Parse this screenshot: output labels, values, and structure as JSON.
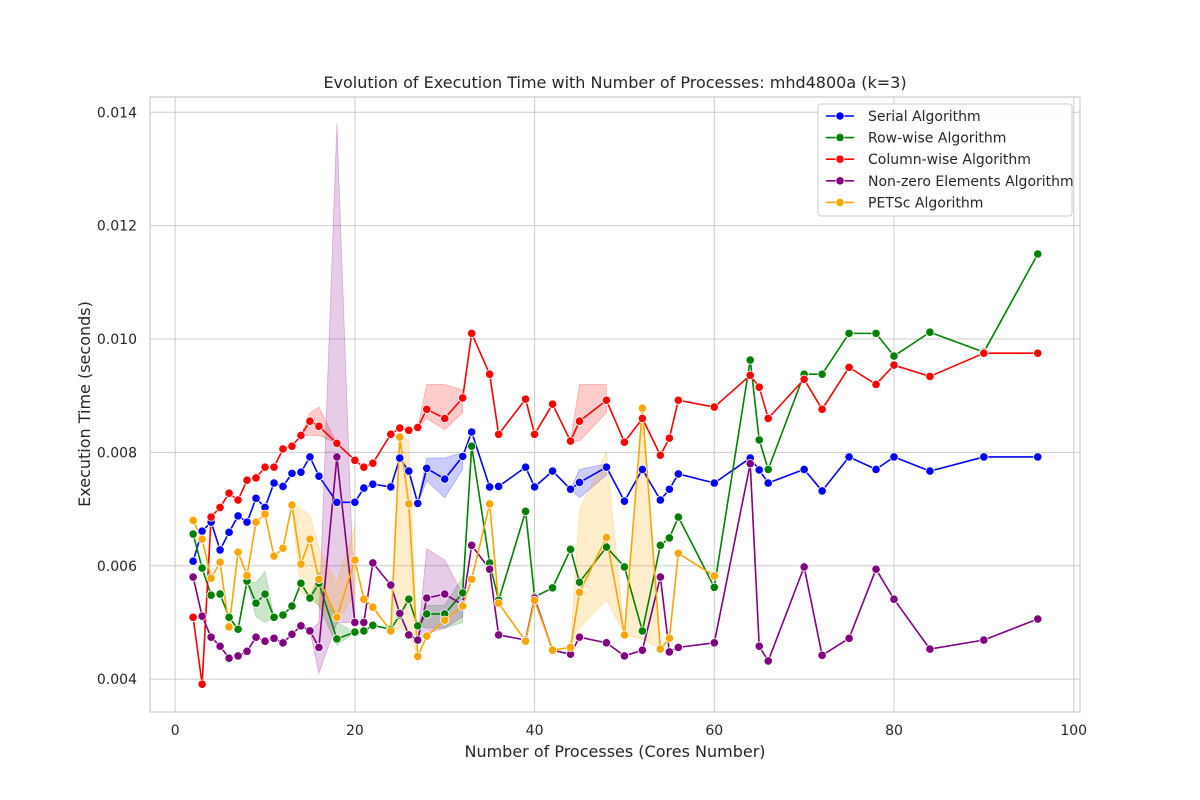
{
  "chart_data": {
    "type": "line",
    "title": "Evolution of Execution Time with Number of Processes: mhd4800a (k=3)",
    "xlabel": "Number of Processes (Cores Number)",
    "ylabel": "Execution Time (seconds)",
    "xlim": [
      -2.8,
      100.7
    ],
    "ylim": [
      0.00342,
      0.01427
    ],
    "xticks": [
      0,
      20,
      40,
      60,
      80,
      100
    ],
    "xtick_labels": [
      "0",
      "20",
      "40",
      "60",
      "80",
      "100"
    ],
    "yticks": [
      0.004,
      0.006,
      0.008,
      0.01,
      0.012,
      0.014
    ],
    "ytick_labels": [
      "0.004",
      "0.006",
      "0.008",
      "0.010",
      "0.012",
      "0.014"
    ],
    "grid": true,
    "legend": "top-right",
    "series": [
      {
        "name": "Serial Algorithm",
        "color": "#0000ff",
        "x": [
          2,
          3,
          4,
          5,
          6,
          7,
          8,
          9,
          10,
          11,
          12,
          13,
          14,
          15,
          16,
          18,
          20,
          21,
          22,
          24,
          25,
          26,
          27,
          28,
          30,
          32,
          33,
          35,
          36,
          39,
          40,
          42,
          44,
          45,
          48,
          50,
          52,
          54,
          55,
          56,
          60,
          64,
          65,
          66,
          70,
          72,
          75,
          78,
          80,
          84,
          90,
          96
        ],
        "y": [
          0.00608,
          0.00661,
          0.00677,
          0.00628,
          0.00659,
          0.00688,
          0.00677,
          0.00719,
          0.00703,
          0.00746,
          0.0074,
          0.00763,
          0.00765,
          0.00792,
          0.00758,
          0.00712,
          0.00712,
          0.00737,
          0.00744,
          0.00739,
          0.0079,
          0.00767,
          0.0071,
          0.00772,
          0.00753,
          0.00793,
          0.00836,
          0.00739,
          0.0074,
          0.00774,
          0.00739,
          0.00767,
          0.00735,
          0.00747,
          0.00774,
          0.00714,
          0.0077,
          0.00716,
          0.00735,
          0.00762,
          0.00746,
          0.0079,
          0.00769,
          0.00746,
          0.0077,
          0.00732,
          0.00792,
          0.0077,
          0.00792,
          0.00767,
          0.00792,
          0.00792
        ],
        "bands": [
          {
            "x": [
              27,
              28,
              30,
              32
            ],
            "lower": [
              0.0071,
              0.0075,
              0.0072,
              0.0077
            ],
            "upper": [
              0.0071,
              0.0079,
              0.0079,
              0.008
            ]
          },
          {
            "x": [
              44,
              45,
              48
            ],
            "lower": [
              0.00735,
              0.0072,
              0.0076
            ],
            "upper": [
              0.00735,
              0.0077,
              0.0078
            ]
          }
        ]
      },
      {
        "name": "Row-wise Algorithm",
        "color": "#008000",
        "x": [
          2,
          3,
          4,
          5,
          6,
          7,
          8,
          9,
          10,
          11,
          12,
          13,
          14,
          15,
          16,
          18,
          20,
          21,
          22,
          24,
          25,
          26,
          27,
          28,
          30,
          32,
          33,
          35,
          36,
          39,
          40,
          42,
          44,
          45,
          48,
          50,
          52,
          54,
          55,
          56,
          60,
          64,
          65,
          66,
          70,
          72,
          75,
          78,
          80,
          84,
          90,
          96
        ],
        "y": [
          0.00656,
          0.00596,
          0.00548,
          0.0055,
          0.00509,
          0.00488,
          0.00573,
          0.00534,
          0.0055,
          0.00509,
          0.00513,
          0.00529,
          0.00569,
          0.00543,
          0.00569,
          0.00471,
          0.00483,
          0.00485,
          0.00495,
          0.00488,
          0.00513,
          0.00541,
          0.00494,
          0.00515,
          0.00515,
          0.00552,
          0.00811,
          0.00605,
          0.00539,
          0.00696,
          0.00545,
          0.00561,
          0.00629,
          0.00571,
          0.00633,
          0.00598,
          0.00485,
          0.00636,
          0.00649,
          0.00686,
          0.00562,
          0.00963,
          0.00822,
          0.0077,
          0.00938,
          0.00938,
          0.0101,
          0.0101,
          0.0097,
          0.01012,
          0.00977,
          0.0115
        ],
        "bands": [
          {
            "x": [
              8,
              9,
              10,
              11
            ],
            "lower": [
              0.00573,
              0.0051,
              0.005,
              0.00509
            ],
            "upper": [
              0.00573,
              0.0057,
              0.0059,
              0.00509
            ]
          },
          {
            "x": [
              15,
              16,
              18,
              20
            ],
            "lower": [
              0.00543,
              0.0053,
              0.0046,
              0.00483
            ],
            "upper": [
              0.00543,
              0.0059,
              0.005,
              0.00483
            ]
          },
          {
            "x": [
              27,
              28,
              30,
              32
            ],
            "lower": [
              0.00494,
              0.0049,
              0.0049,
              0.005
            ],
            "upper": [
              0.00494,
              0.0053,
              0.0053,
              0.0058
            ]
          }
        ]
      },
      {
        "name": "Column-wise Algorithm",
        "color": "#ff0000",
        "x": [
          2,
          3,
          4,
          5,
          6,
          7,
          8,
          9,
          10,
          11,
          12,
          13,
          14,
          15,
          16,
          18,
          20,
          21,
          22,
          24,
          25,
          26,
          27,
          28,
          30,
          32,
          33,
          35,
          36,
          39,
          40,
          42,
          44,
          45,
          48,
          50,
          52,
          54,
          55,
          56,
          60,
          64,
          65,
          66,
          70,
          72,
          75,
          78,
          80,
          84,
          90,
          96
        ],
        "y": [
          0.00509,
          0.00391,
          0.00686,
          0.00703,
          0.00728,
          0.00716,
          0.00751,
          0.00755,
          0.00774,
          0.00774,
          0.00806,
          0.00811,
          0.0083,
          0.00855,
          0.00846,
          0.00816,
          0.00786,
          0.00774,
          0.00781,
          0.00832,
          0.00843,
          0.00839,
          0.00844,
          0.00876,
          0.0086,
          0.00896,
          0.0101,
          0.00938,
          0.00832,
          0.00894,
          0.00832,
          0.00885,
          0.0082,
          0.00855,
          0.00892,
          0.00818,
          0.0086,
          0.00795,
          0.00825,
          0.00892,
          0.0088,
          0.00936,
          0.00915,
          0.0086,
          0.00929,
          0.00876,
          0.0095,
          0.0092,
          0.00954,
          0.00934,
          0.00975,
          0.00975
        ],
        "bands": [
          {
            "x": [
              14,
              15,
              16,
              18
            ],
            "lower": [
              0.0083,
              0.0083,
              0.0083,
              0.00816
            ],
            "upper": [
              0.0083,
              0.0087,
              0.0088,
              0.00816
            ]
          },
          {
            "x": [
              27,
              28,
              30,
              32
            ],
            "lower": [
              0.00844,
              0.0086,
              0.0084,
              0.0087
            ],
            "upper": [
              0.00844,
              0.0092,
              0.0092,
              0.0091
            ]
          },
          {
            "x": [
              44,
              45,
              48
            ],
            "lower": [
              0.0082,
              0.0082,
              0.0087
            ],
            "upper": [
              0.0082,
              0.0092,
              0.0092
            ]
          }
        ]
      },
      {
        "name": "Non-zero Elements Algorithm",
        "color": "#800080",
        "x": [
          2,
          3,
          4,
          5,
          6,
          7,
          8,
          9,
          10,
          11,
          12,
          13,
          14,
          15,
          16,
          18,
          20,
          21,
          22,
          24,
          25,
          26,
          27,
          28,
          30,
          32,
          33,
          35,
          36,
          39,
          40,
          42,
          44,
          45,
          48,
          50,
          52,
          54,
          55,
          56,
          60,
          64,
          65,
          66,
          70,
          72,
          75,
          78,
          80,
          84,
          90,
          96
        ],
        "y": [
          0.0058,
          0.00511,
          0.00474,
          0.00458,
          0.00437,
          0.00441,
          0.00449,
          0.00474,
          0.00467,
          0.00472,
          0.00464,
          0.00479,
          0.00494,
          0.00485,
          0.00456,
          0.00792,
          0.005,
          0.005,
          0.00605,
          0.00566,
          0.00516,
          0.00478,
          0.00469,
          0.00543,
          0.0055,
          0.00531,
          0.00636,
          0.00594,
          0.00478,
          0.00469,
          0.00543,
          0.00451,
          0.00444,
          0.00474,
          0.00464,
          0.00441,
          0.00451,
          0.0058,
          0.00448,
          0.00456,
          0.00464,
          0.0078,
          0.00458,
          0.00432,
          0.00598,
          0.00442,
          0.00472,
          0.00594,
          0.00541,
          0.00453,
          0.00469,
          0.00506
        ],
        "bands": [
          {
            "x": [
              15,
              16,
              18,
              20
            ],
            "lower": [
              0.00485,
              0.0041,
              0.005,
              0.005
            ],
            "upper": [
              0.00485,
              0.005,
              0.0138,
              0.005
            ]
          },
          {
            "x": [
              27,
              28,
              30,
              32
            ],
            "lower": [
              0.00469,
              0.0048,
              0.0049,
              0.0051
            ],
            "upper": [
              0.00469,
              0.0063,
              0.0061,
              0.0055
            ]
          }
        ]
      },
      {
        "name": "PETSc Algorithm",
        "color": "#ffa500",
        "x": [
          2,
          3,
          4,
          5,
          6,
          7,
          8,
          9,
          10,
          11,
          12,
          13,
          14,
          15,
          16,
          18,
          20,
          21,
          22,
          24,
          25,
          26,
          27,
          28,
          30,
          32,
          33,
          35,
          36,
          39,
          40,
          42,
          44,
          45,
          48,
          50,
          52,
          54,
          55,
          56,
          60
        ],
        "y": [
          0.0068,
          0.00647,
          0.00578,
          0.00606,
          0.00492,
          0.00624,
          0.00583,
          0.00677,
          0.00691,
          0.00617,
          0.00631,
          0.00707,
          0.00603,
          0.00647,
          0.00576,
          0.00509,
          0.0061,
          0.00541,
          0.00527,
          0.00485,
          0.00827,
          0.00709,
          0.0044,
          0.00476,
          0.00504,
          0.00529,
          0.00576,
          0.00709,
          0.00534,
          0.00467,
          0.00539,
          0.00451,
          0.00456,
          0.00553,
          0.0065,
          0.00478,
          0.00878,
          0.00453,
          0.00472,
          0.00622,
          0.00582
        ],
        "bands": [
          {
            "x": [
              13,
              14,
              15,
              16,
              18,
              20
            ],
            "lower": [
              0.00707,
              0.0055,
              0.0055,
              0.0053,
              0.005,
              0.0055
            ],
            "upper": [
              0.00707,
              0.007,
              0.0069,
              0.0063,
              0.0057,
              0.0067
            ]
          },
          {
            "x": [
              24,
              25,
              26,
              27
            ],
            "lower": [
              0.00485,
              0.0049,
              0.0048,
              0.0044
            ],
            "upper": [
              0.00485,
              0.0083,
              0.0082,
              0.0044
            ]
          },
          {
            "x": [
              44,
              45,
              48,
              50
            ],
            "lower": [
              0.00456,
              0.0049,
              0.0054,
              0.00478
            ],
            "upper": [
              0.00456,
              0.007,
              0.008,
              0.00478
            ]
          },
          {
            "x": [
              50,
              52,
              54
            ],
            "lower": [
              0.00478,
              0.0047,
              0.00453
            ],
            "upper": [
              0.00478,
              0.0088,
              0.00453
            ]
          }
        ]
      }
    ]
  }
}
